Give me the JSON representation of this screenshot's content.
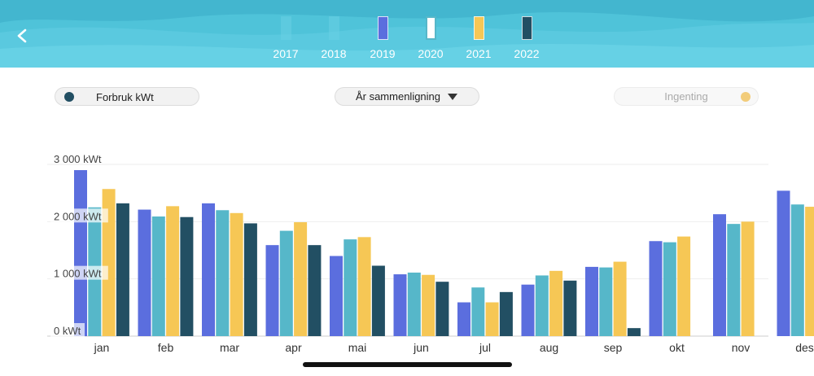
{
  "header": {
    "years": [
      {
        "label": "2017",
        "active": false,
        "color": "#6ad0e3"
      },
      {
        "label": "2018",
        "active": false,
        "color": "#6ad0e3"
      },
      {
        "label": "2019",
        "active": true,
        "color": "#5b6ede"
      },
      {
        "label": "2020",
        "active": true,
        "color": "#56b7c9"
      },
      {
        "label": "2021",
        "active": true,
        "color": "#f6c755"
      },
      {
        "label": "2022",
        "active": true,
        "color": "#224f63"
      }
    ]
  },
  "controls": {
    "consumption_label": "Forbruk kWt",
    "consumption_color": "#224f63",
    "compare_label": "År sammenligning",
    "none_label": "Ingenting",
    "none_color": "#f2cc7a"
  },
  "chart_data": {
    "type": "bar",
    "ylabel_unit": "kWt",
    "ylim": [
      0,
      3000
    ],
    "yticks": [
      {
        "value": 0,
        "label": "0 kWt"
      },
      {
        "value": 1000,
        "label": "1 000 kWt"
      },
      {
        "value": 2000,
        "label": "2 000 kWt"
      },
      {
        "value": 3000,
        "label": "3 000 kWt"
      }
    ],
    "categories": [
      "jan",
      "feb",
      "mar",
      "apr",
      "mai",
      "jun",
      "jul",
      "aug",
      "sep",
      "okt",
      "nov",
      "des"
    ],
    "series": [
      {
        "name": "2019",
        "color": "#5b6ede",
        "values": [
          2900,
          2210,
          2320,
          1590,
          1400,
          1080,
          590,
          900,
          1210,
          1660,
          2130,
          2540
        ]
      },
      {
        "name": "2020",
        "color": "#56b7c9",
        "values": [
          2250,
          2090,
          2200,
          1840,
          1690,
          1110,
          850,
          1060,
          1200,
          1640,
          1960,
          2300
        ]
      },
      {
        "name": "2021",
        "color": "#f6c755",
        "values": [
          2570,
          2270,
          2150,
          1990,
          1730,
          1070,
          590,
          1140,
          1300,
          1740,
          2000,
          2260
        ]
      },
      {
        "name": "2022",
        "color": "#224f63",
        "values": [
          2320,
          2080,
          1970,
          1590,
          1230,
          950,
          770,
          970,
          140,
          null,
          null,
          null
        ]
      }
    ]
  }
}
